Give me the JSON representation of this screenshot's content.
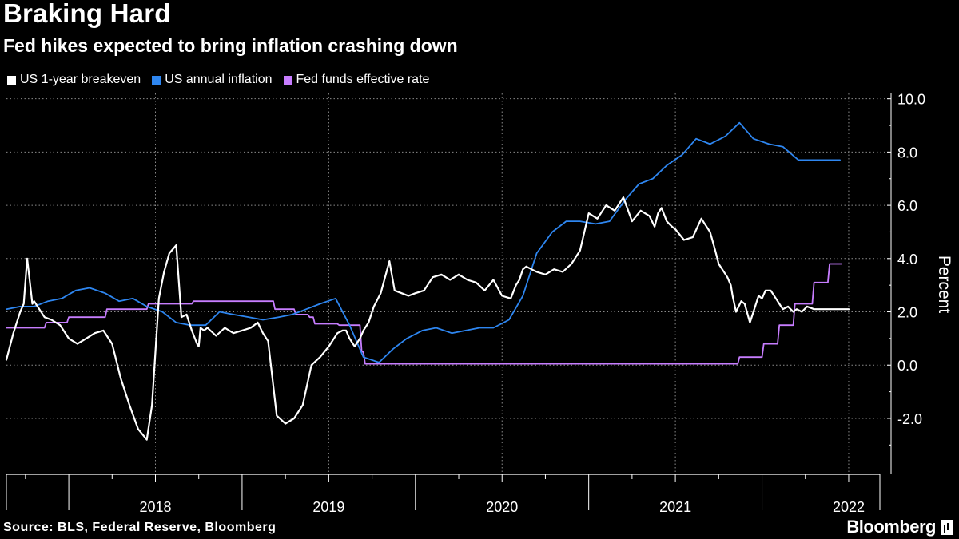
{
  "header": {
    "title": "Braking Hard",
    "subtitle": "Fed hikes expected to bring inflation crashing down"
  },
  "footer": {
    "source": "Source: BLS, Federal Reserve, Bloomberg",
    "brand": "Bloomberg"
  },
  "colors": {
    "background": "#000000",
    "breakeven": "#ffffff",
    "inflation": "#2e86f0",
    "fedfunds": "#c77dff",
    "grid": "#8a8a8a"
  },
  "chart_data": {
    "type": "line",
    "title": "Braking Hard",
    "subtitle": "Fed hikes expected to bring inflation crashing down",
    "xlabel": "",
    "ylabel": "Percent",
    "xlim": [
      2017.64,
      2022.68
    ],
    "ylim": [
      -4.1,
      10.2
    ],
    "yticks": [
      10.0,
      8.0,
      6.0,
      4.0,
      2.0,
      0.0,
      -2.0
    ],
    "ytick_labels": [
      "10.0",
      "8.0",
      "6.0",
      "4.0",
      "2.0",
      "0.0",
      "-2.0"
    ],
    "xticks": [
      2018,
      2019,
      2020,
      2021,
      2022
    ],
    "xtick_labels": [
      "2018",
      "2019",
      "2020",
      "2021",
      "2022"
    ],
    "grid": true,
    "legend_position": "top-left",
    "series": [
      {
        "name": "US 1-year breakeven",
        "color": "#ffffff",
        "x": [
          2017.64,
          2017.68,
          2017.72,
          2017.74,
          2017.76,
          2017.79,
          2017.8,
          2017.81,
          2017.83,
          2017.86,
          2017.9,
          2017.95,
          2018.0,
          2018.05,
          2018.1,
          2018.15,
          2018.2,
          2018.25,
          2018.3,
          2018.35,
          2018.4,
          2018.45,
          2018.48,
          2018.5,
          2018.52,
          2018.55,
          2018.58,
          2018.62,
          2018.65,
          2018.68,
          2018.71,
          2018.74,
          2018.75,
          2018.76,
          2018.78,
          2018.8,
          2018.85,
          2018.9,
          2018.95,
          2019.0,
          2019.05,
          2019.07,
          2019.09,
          2019.12,
          2019.15,
          2019.2,
          2019.25,
          2019.3,
          2019.35,
          2019.4,
          2019.45,
          2019.5,
          2019.55,
          2019.58,
          2019.6,
          2019.62,
          2019.64,
          2019.65,
          2019.68,
          2019.7,
          2019.73,
          2019.76,
          2019.8,
          2019.85,
          2019.88,
          2019.92,
          2019.96,
          2020.0,
          2020.05,
          2020.1,
          2020.15,
          2020.2,
          2020.25,
          2020.3,
          2020.35,
          2020.4,
          2020.45,
          2020.5,
          2020.55,
          2020.58,
          2020.6,
          2020.62,
          2020.64,
          2020.67,
          2020.7,
          2020.75,
          2020.8,
          2020.85,
          2020.9,
          2020.95,
          2021.0,
          2021.05,
          2021.1,
          2021.15,
          2021.2,
          2021.25,
          2021.3,
          2021.35,
          2021.38,
          2021.4,
          2021.42,
          2021.45,
          2021.48,
          2021.5,
          2021.55,
          2021.6,
          2021.65,
          2021.7,
          2021.73,
          2021.75,
          2021.77,
          2021.8,
          2021.82,
          2021.83,
          2021.85,
          2021.88,
          2021.9,
          2021.93,
          2021.96,
          2021.98,
          2022.0,
          2022.02,
          2022.05,
          2022.08,
          2022.1,
          2022.12,
          2022.15,
          2022.18,
          2022.2,
          2022.23,
          2022.26,
          2022.3,
          2022.33,
          2022.36,
          2022.38,
          2022.4,
          2022.43,
          2022.47,
          2022.5
        ],
        "y": [
          0.2,
          1.2,
          2.0,
          2.3,
          4.0,
          2.3,
          2.4,
          2.3,
          2.1,
          1.8,
          1.7,
          1.5,
          1.0,
          0.8,
          1.0,
          1.2,
          1.3,
          0.8,
          -0.5,
          -1.5,
          -2.4,
          -2.8,
          -1.5,
          0.5,
          2.5,
          3.5,
          4.2,
          4.5,
          1.8,
          1.9,
          1.3,
          0.8,
          0.7,
          1.4,
          1.3,
          1.4,
          1.1,
          1.4,
          1.2,
          1.3,
          1.4,
          1.5,
          1.6,
          1.2,
          0.9,
          -1.9,
          -2.2,
          -2.0,
          -1.5,
          0.0,
          0.3,
          0.7,
          1.2,
          1.3,
          1.3,
          1.0,
          0.8,
          0.7,
          1.0,
          1.3,
          1.6,
          2.2,
          2.7,
          3.9,
          2.8,
          2.7,
          2.6,
          2.7,
          2.8,
          3.3,
          3.4,
          3.2,
          3.4,
          3.2,
          3.1,
          2.8,
          3.2,
          2.6,
          2.5,
          3.0,
          3.2,
          3.6,
          3.7,
          3.6,
          3.5,
          3.4,
          3.6,
          3.5,
          3.8,
          4.3,
          5.7,
          5.5,
          6.0,
          5.8,
          6.3,
          5.4,
          5.8,
          5.6,
          5.2,
          5.7,
          5.9,
          5.4,
          5.2,
          5.1,
          4.7,
          4.8,
          5.5,
          5.0,
          4.3,
          3.8,
          3.6,
          3.3,
          3.0,
          2.6,
          2.0,
          2.4,
          2.3,
          1.6,
          2.2,
          2.6,
          2.5,
          2.8,
          2.8,
          2.5,
          2.3,
          2.1,
          2.2,
          2.0,
          2.1,
          2.0,
          2.2,
          2.1,
          2.1,
          2.1,
          2.1,
          2.1,
          2.1,
          2.1,
          2.1
        ]
      },
      {
        "name": "US annual inflation",
        "color": "#2e86f0",
        "x": [
          2017.64,
          2017.72,
          2017.8,
          2017.88,
          2017.96,
          2018.04,
          2018.12,
          2018.21,
          2018.29,
          2018.37,
          2018.45,
          2018.54,
          2018.62,
          2018.7,
          2018.79,
          2018.87,
          2018.95,
          2019.04,
          2019.12,
          2019.21,
          2019.29,
          2019.37,
          2019.45,
          2019.54,
          2019.62,
          2019.7,
          2019.79,
          2019.87,
          2019.95,
          2020.04,
          2020.12,
          2020.21,
          2020.29,
          2020.37,
          2020.45,
          2020.54,
          2020.62,
          2020.7,
          2020.79,
          2020.87,
          2020.95,
          2021.04,
          2021.12,
          2021.21,
          2021.29,
          2021.37,
          2021.45,
          2021.54,
          2021.62,
          2021.7,
          2021.79,
          2021.87,
          2021.95,
          2022.04,
          2022.12,
          2022.21,
          2022.29,
          2022.37,
          2022.45
        ],
        "y": [
          2.1,
          2.2,
          2.2,
          2.4,
          2.5,
          2.8,
          2.9,
          2.7,
          2.4,
          2.5,
          2.2,
          2.0,
          1.6,
          1.5,
          1.5,
          2.0,
          1.9,
          1.8,
          1.7,
          1.8,
          1.9,
          2.1,
          2.3,
          2.5,
          1.5,
          0.3,
          0.1,
          0.6,
          1.0,
          1.3,
          1.4,
          1.2,
          1.3,
          1.4,
          1.4,
          1.7,
          2.6,
          4.2,
          5.0,
          5.4,
          5.4,
          5.3,
          5.4,
          6.2,
          6.8,
          7.0,
          7.5,
          7.9,
          8.5,
          8.3,
          8.6,
          9.1,
          8.5,
          8.3,
          8.2,
          7.7,
          7.7,
          7.7,
          7.7
        ]
      },
      {
        "name": "Fed funds effective rate",
        "color": "#c77dff",
        "x": [
          2017.64,
          2017.86,
          2017.87,
          2017.99,
          2018.0,
          2018.21,
          2018.22,
          2018.45,
          2018.46,
          2018.71,
          2018.72,
          2019.18,
          2019.19,
          2019.3,
          2019.31,
          2019.38,
          2019.39,
          2019.41,
          2019.42,
          2019.55,
          2019.56,
          2019.68,
          2019.69,
          2019.7,
          2019.71,
          2021.86,
          2021.87,
          2022.0,
          2022.01,
          2022.09,
          2022.1,
          2022.18,
          2022.19,
          2022.29,
          2022.3,
          2022.38,
          2022.39,
          2022.46
        ],
        "y": [
          1.4,
          1.4,
          1.6,
          1.6,
          1.8,
          1.8,
          2.1,
          2.1,
          2.3,
          2.3,
          2.4,
          2.4,
          2.1,
          2.1,
          1.9,
          1.9,
          1.8,
          1.8,
          1.55,
          1.55,
          1.5,
          1.5,
          0.5,
          0.5,
          0.05,
          0.05,
          0.3,
          0.3,
          0.8,
          0.8,
          1.5,
          1.5,
          2.3,
          2.3,
          3.1,
          3.1,
          3.8,
          3.8
        ]
      }
    ]
  }
}
